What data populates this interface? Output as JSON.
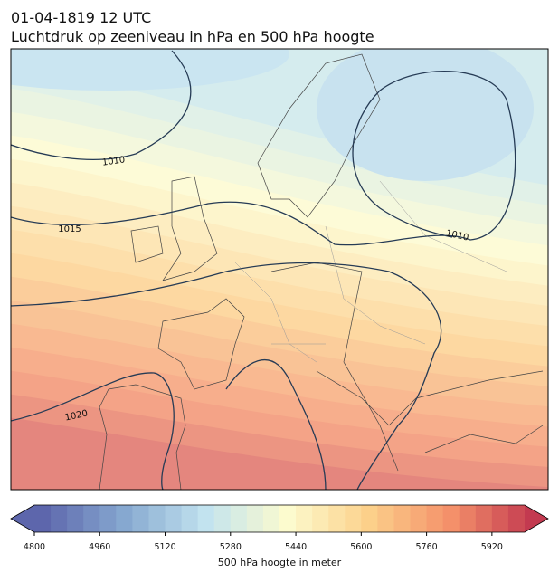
{
  "title": [
    "01-04-1819 12 UTC",
    "Luchtdruk op zeeniveau in hPa en 500 hPa hoogte"
  ],
  "contour_labels": [
    1010,
    1010,
    1015,
    1020
  ],
  "colorbar": {
    "label": "500 hPa hoogte in meter",
    "lim": [
      4800,
      6000
    ],
    "ticks": [
      4800,
      4960,
      5120,
      5280,
      5440,
      5600,
      5760,
      5920
    ],
    "colormap": [
      "#5d66ac",
      "#86a8d0",
      "#c2e3ef",
      "#fcfbce",
      "#fcd08a",
      "#f4906a",
      "#c33a50"
    ],
    "step": 40
  }
}
